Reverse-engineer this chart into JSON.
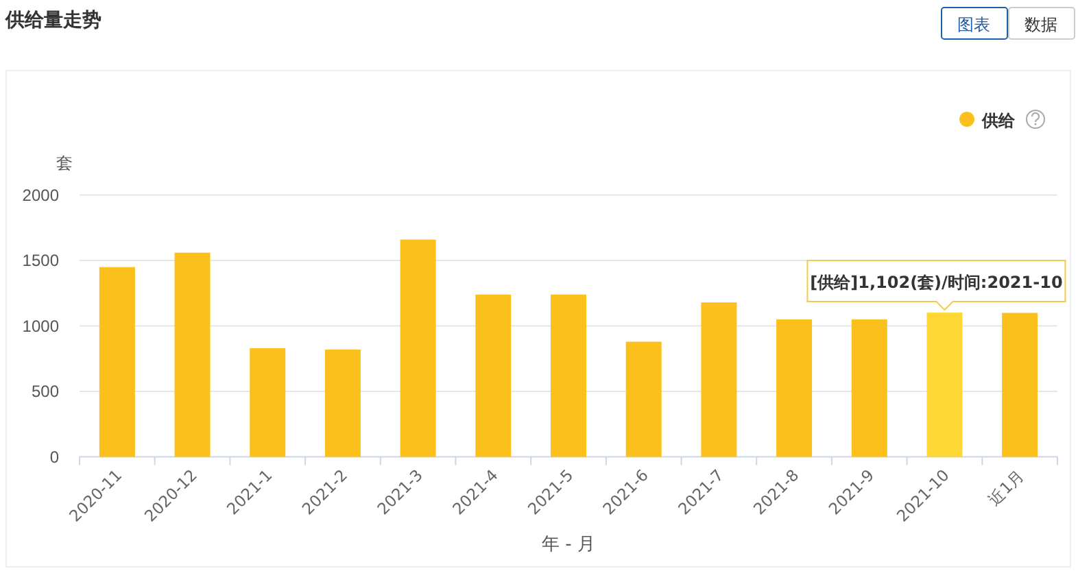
{
  "chart_data": {
    "type": "bar",
    "title": "供给量走势",
    "xlabel": "年 - 月",
    "ylabel": "套",
    "categories": [
      "2020-11",
      "2020-12",
      "2021-1",
      "2021-2",
      "2021-3",
      "2021-4",
      "2021-5",
      "2021-6",
      "2021-7",
      "2021-8",
      "2021-9",
      "2021-10",
      "近1月"
    ],
    "series": [
      {
        "name": "供给",
        "color": "#fcc01d",
        "colors": [
          "#fcc01d",
          "#fcc01d",
          "#fcc01d",
          "#fcc01d",
          "#fcc01d",
          "#fcc01d",
          "#fcc01d",
          "#fcc01d",
          "#fcc01d",
          "#fcc01d",
          "#fcc01d",
          "#fdd835",
          "#fcc01d"
        ],
        "values": [
          1450,
          1560,
          830,
          820,
          1660,
          1240,
          1240,
          880,
          1180,
          1050,
          1050,
          1102,
          1100
        ]
      }
    ],
    "ylim": [
      0,
      2000
    ],
    "yticks": [
      0,
      500,
      1000,
      1500,
      2000
    ],
    "grid": "y",
    "legend": "top right",
    "annotations": [
      {
        "text": "[供给]1,102(套)/时间:2021-10",
        "x": "2021-10",
        "y": 1102
      },
      "图表",
      "数据"
    ]
  }
}
